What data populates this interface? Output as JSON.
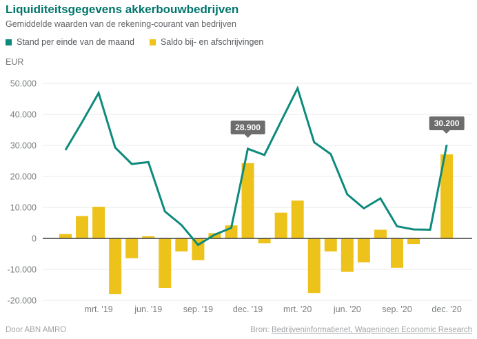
{
  "header": {
    "title": "Liquiditeitsgegevens akkerbouwbedrijven",
    "subtitle": "Gemiddelde waarden van de rekening-courant van bedrijven"
  },
  "legend": [
    {
      "label": "Stand per einde van de maand",
      "color": "#0E8A7C"
    },
    {
      "label": "Saldo bij- en afschrijvingen",
      "color": "#EDC21A"
    }
  ],
  "axis_unit": "EUR",
  "footer": {
    "left": "Door ABN AMRO",
    "source_label": "Bron:",
    "source_text": "Bedrijveninformatienet, Wageningen Economic Research"
  },
  "colors": {
    "title": "#00756B",
    "line": "#0E8A7C",
    "bar": "#EDC21A",
    "grid": "#E8E8E8",
    "zero_axis": "#3C3C3C",
    "callout_bg": "#6D6D6D",
    "tick_text": "#797C7F"
  },
  "chart_data": {
    "type": "combo",
    "title": "Liquiditeitsgegevens akkerbouwbedrijven",
    "subtitle": "Gemiddelde waarden van de rekening-courant van bedrijven",
    "ylabel": "EUR",
    "ylim": [
      -20000,
      50000
    ],
    "grid": true,
    "legend_position": "top",
    "categories": [
      "jan. '19",
      "feb. '19",
      "mrt. '19",
      "apr. '19",
      "mei '19",
      "jun. '19",
      "jul. '19",
      "aug. '19",
      "sep. '19",
      "okt. '19",
      "nov. '19",
      "dec. '19",
      "jan. '20",
      "feb. '20",
      "mrt. '20",
      "apr. '20",
      "mei '20",
      "jun. '20",
      "jul. '20",
      "aug. '20",
      "sep. '20",
      "okt. '20",
      "nov. '20",
      "dec. '20"
    ],
    "x_ticks": [
      {
        "index": 2,
        "label": "mrt. '19"
      },
      {
        "index": 5,
        "label": "jun. '19"
      },
      {
        "index": 8,
        "label": "sep. '19"
      },
      {
        "index": 11,
        "label": "dec. '19"
      },
      {
        "index": 14,
        "label": "mrt. '20"
      },
      {
        "index": 17,
        "label": "jun. '20"
      },
      {
        "index": 20,
        "label": "sep. '20"
      },
      {
        "index": 23,
        "label": "dec. '20"
      }
    ],
    "y_ticks": [
      {
        "value": 50000,
        "label": "50.000"
      },
      {
        "value": 40000,
        "label": "40.000"
      },
      {
        "value": 30000,
        "label": "30.000"
      },
      {
        "value": 20000,
        "label": "20.000"
      },
      {
        "value": 10000,
        "label": "10.000"
      },
      {
        "value": 0,
        "label": "0"
      },
      {
        "value": -10000,
        "label": "-10.000"
      },
      {
        "value": -20000,
        "label": "-20.000"
      }
    ],
    "series": [
      {
        "name": "Stand per einde van de maand",
        "type": "line",
        "color": "#0E8A7C",
        "values": [
          28500,
          37500,
          46900,
          29300,
          24000,
          24600,
          8700,
          4300,
          -2100,
          1200,
          3400,
          28900,
          26900,
          37700,
          48400,
          31000,
          27200,
          14200,
          9700,
          12900,
          3900,
          2900,
          2800,
          30200
        ]
      },
      {
        "name": "Saldo bij- en afschrijvingen",
        "type": "bar",
        "color": "#EDC21A",
        "values": [
          1400,
          7200,
          10200,
          -18000,
          -6400,
          700,
          -16000,
          -4200,
          -7000,
          1700,
          4200,
          24300,
          -1600,
          8300,
          12200,
          -17600,
          -4200,
          -10800,
          -7700,
          2800,
          -9500,
          -1800,
          0,
          27100
        ]
      }
    ],
    "annotations": [
      {
        "index": 11,
        "value": 28900,
        "label": "28.900"
      },
      {
        "index": 23,
        "value": 30200,
        "label": "30.200"
      }
    ]
  }
}
